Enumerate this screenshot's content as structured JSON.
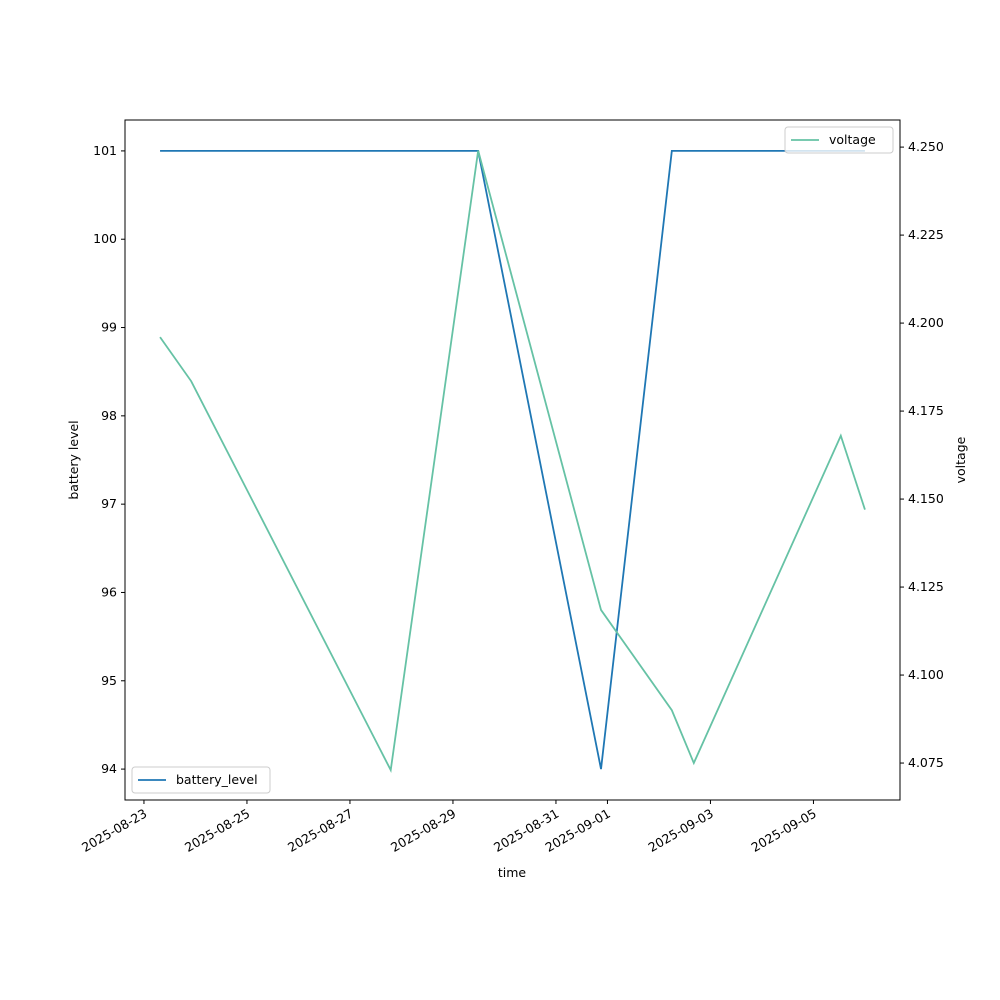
{
  "chart_data": {
    "type": "line",
    "xlabel": "time",
    "ylabel": "battery level",
    "y2label": "voltage",
    "x": [
      "2025-08-23T07:30",
      "2025-08-23T22:00",
      "2025-08-27T19:00",
      "2025-08-29T11:45",
      "2025-08-31T21:00",
      "2025-09-02T06:00",
      "2025-09-02T16:15",
      "2025-09-05T12:45",
      "2025-09-06T00:00"
    ],
    "series": [
      {
        "name": "battery_level",
        "color": "#1f77b4",
        "values": [
          101,
          101,
          101,
          101,
          94,
          101,
          101,
          101,
          101
        ]
      },
      {
        "name": "voltage",
        "color": "#66c2a5",
        "axis": "y2",
        "values": [
          4.196,
          4.1835,
          4.073,
          4.249,
          4.1185,
          4.09,
          4.075,
          4.168,
          4.147
        ]
      }
    ],
    "xlim": [
      "2025-08-22T15:10",
      "2025-09-06T16:20"
    ],
    "xticks": [
      "2025-08-23",
      "2025-08-25",
      "2025-08-27",
      "2025-08-29",
      "2025-08-31",
      "2025-09-01",
      "2025-09-03",
      "2025-09-05"
    ],
    "ylim": [
      93.65,
      101.35
    ],
    "yticks": [
      94,
      95,
      96,
      97,
      98,
      99,
      100,
      101
    ],
    "y2lim": [
      4.0645,
      4.2577
    ],
    "y2ticks": [
      {
        "value": 4.075,
        "label": "4.075"
      },
      {
        "value": 4.1,
        "label": "4.100"
      },
      {
        "value": 4.125,
        "label": "4.125"
      },
      {
        "value": 4.15,
        "label": "4.150"
      },
      {
        "value": 4.175,
        "label": "4.175"
      },
      {
        "value": 4.2,
        "label": "4.200"
      },
      {
        "value": 4.225,
        "label": "4.225"
      },
      {
        "value": 4.25,
        "label": "4.250"
      }
    ],
    "legend_loc": [
      "lower left",
      "upper right"
    ]
  }
}
